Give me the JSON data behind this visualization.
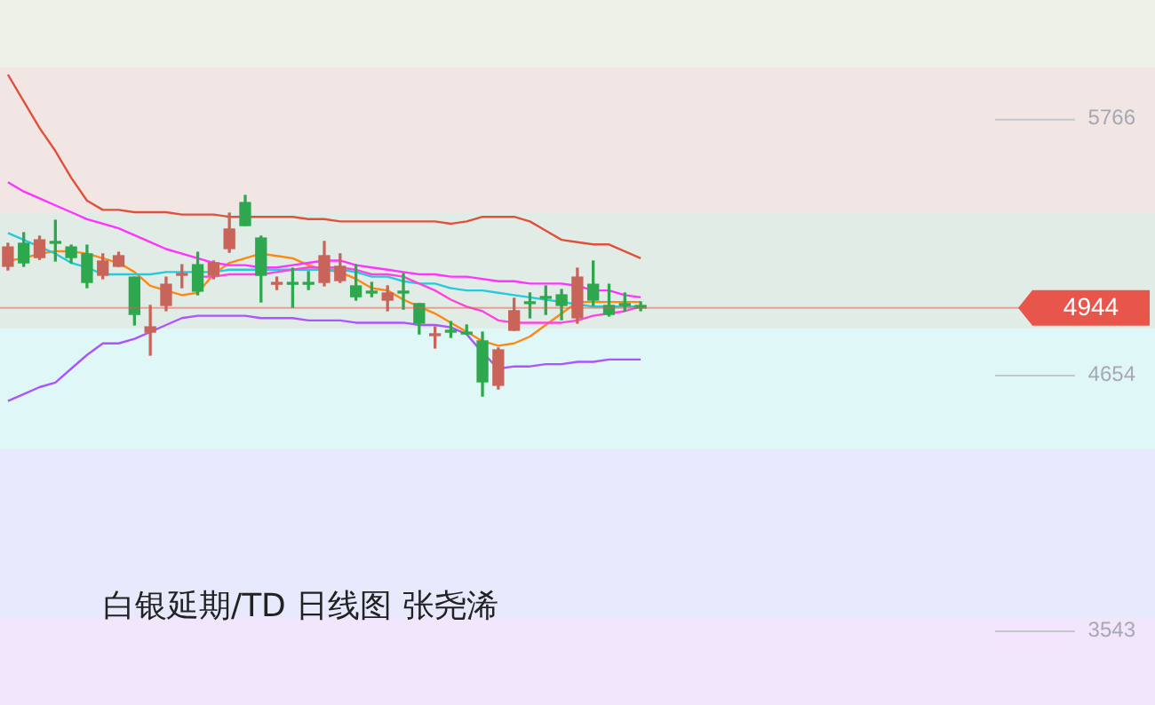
{
  "chart_data": {
    "type": "candlestick",
    "title": "白银延期/TD 日线图 张尧浠",
    "categories": [
      null,
      null,
      null,
      null,
      null,
      null,
      null,
      null,
      null,
      null,
      null,
      null,
      null,
      null,
      null,
      null,
      null,
      null,
      null,
      null,
      null,
      null,
      null,
      null,
      null,
      null,
      null,
      null,
      null,
      null,
      null,
      null,
      null,
      null,
      null,
      null,
      null,
      null,
      null,
      null,
      null
    ],
    "ohlc": [
      [
        5125,
        5225,
        5109,
        5209
      ],
      [
        5225,
        5271,
        5125,
        5140
      ],
      [
        5163,
        5256,
        5155,
        5240
      ],
      [
        5233,
        5325,
        5148,
        5225
      ],
      [
        5209,
        5217,
        5140,
        5163
      ],
      [
        5179,
        5217,
        5032,
        5055
      ],
      [
        5086,
        5179,
        5071,
        5148
      ],
      [
        5125,
        5186,
        5125,
        5171
      ],
      [
        5078,
        5078,
        4870,
        4916
      ],
      [
        4839,
        4955,
        4739,
        4862
      ],
      [
        4955,
        5078,
        4932,
        5047
      ],
      [
        5086,
        5132,
        5032,
        5094
      ],
      [
        5132,
        5186,
        5001,
        5017
      ],
      [
        5086,
        5148,
        5071,
        5140
      ],
      [
        5202,
        5356,
        5186,
        5287
      ],
      [
        5402,
        5433,
        5302,
        5302
      ],
      [
        5248,
        5256,
        4970,
        5086
      ],
      [
        5047,
        5078,
        5024,
        5055
      ],
      [
        5055,
        5117,
        4947,
        5047
      ],
      [
        5055,
        5102,
        5024,
        5047
      ],
      [
        5055,
        5233,
        5040,
        5171
      ],
      [
        5063,
        5179,
        5055,
        5125
      ],
      [
        5040,
        5132,
        4978,
        4993
      ],
      [
        5017,
        5055,
        4993,
        5009
      ],
      [
        4978,
        5040,
        4932,
        5009
      ],
      [
        5017,
        5094,
        4939,
        5009
      ],
      [
        4963,
        4963,
        4831,
        4878
      ],
      [
        4824,
        4862,
        4770,
        4831
      ],
      [
        4847,
        4885,
        4816,
        4839
      ],
      [
        4839,
        4870,
        4831,
        4831
      ],
      [
        4801,
        4839,
        4561,
        4623
      ],
      [
        4608,
        4770,
        4592,
        4762
      ],
      [
        4847,
        4986,
        4847,
        4932
      ],
      [
        4970,
        5009,
        4901,
        4963
      ],
      [
        4993,
        5040,
        4916,
        4986
      ],
      [
        5001,
        5024,
        4893,
        4955
      ],
      [
        4901,
        5117,
        4878,
        5078
      ],
      [
        5047,
        5148,
        4955,
        4978
      ],
      [
        4955,
        5047,
        4909,
        4916
      ],
      [
        4963,
        5009,
        4932,
        4955
      ],
      [
        4955,
        4970,
        4932,
        4944
      ]
    ],
    "colors": [
      "#c8645a",
      "#2ea84f",
      "#c8645a",
      "#2ea84f",
      "#2ea84f",
      "#2ea84f",
      "#c8645a",
      "#c8645a",
      "#2ea84f",
      "#c8645a",
      "#c8645a",
      "#c8645a",
      "#2ea84f",
      "#c8645a",
      "#c8645a",
      "#2ea84f",
      "#2ea84f",
      "#c8645a",
      "#2ea84f",
      "#2ea84f",
      "#c8645a",
      "#c8645a",
      "#2ea84f",
      "#2ea84f",
      "#c8645a",
      "#2ea84f",
      "#2ea84f",
      "#c8645a",
      "#2ea84f",
      "#2ea84f",
      "#2ea84f",
      "#c8645a",
      "#c8645a",
      "#2ea84f",
      "#2ea84f",
      "#2ea84f",
      "#c8645a",
      "#2ea84f",
      "#2ea84f",
      "#2ea84f",
      "#2ea84f"
    ],
    "series": [
      {
        "type": "line",
        "color": "#e0503a",
        "values": [
          5958,
          5842,
          5726,
          5626,
          5510,
          5410,
          5370,
          5370,
          5360,
          5360,
          5360,
          5350,
          5350,
          5350,
          5340,
          5340,
          5340,
          5340,
          5340,
          5330,
          5330,
          5320,
          5320,
          5320,
          5320,
          5320,
          5320,
          5320,
          5310,
          5320,
          5340,
          5340,
          5340,
          5320,
          5280,
          5240,
          5230,
          5220,
          5220,
          5190,
          5160
        ]
      },
      {
        "type": "line",
        "color": "#ff33ff",
        "values": [
          5490,
          5450,
          5420,
          5390,
          5360,
          5330,
          5310,
          5290,
          5260,
          5230,
          5200,
          5180,
          5160,
          5140,
          5130,
          5130,
          5120,
          5120,
          5130,
          5140,
          5150,
          5150,
          5130,
          5120,
          5110,
          5100,
          5090,
          5090,
          5080,
          5080,
          5070,
          5060,
          5060,
          5050,
          5050,
          5050,
          5040,
          5020,
          5020,
          5000,
          4990
        ]
      },
      {
        "type": "line",
        "color": "#ff44dd",
        "values": [
          null,
          null,
          null,
          null,
          null,
          null,
          null,
          null,
          null,
          null,
          null,
          null,
          5080,
          5080,
          5090,
          5090,
          5090,
          5100,
          5110,
          5120,
          5120,
          5120,
          5110,
          5090,
          5090,
          5080,
          5050,
          5020,
          4980,
          4950,
          4930,
          4890,
          4880,
          4880,
          4880,
          4880,
          4890,
          4910,
          4920,
          4930,
          4950
        ]
      },
      {
        "type": "line",
        "color": "#22ccdd",
        "values": [
          5270,
          5240,
          5210,
          5180,
          5140,
          5120,
          5090,
          5090,
          5090,
          5090,
          5100,
          5100,
          5100,
          5100,
          5110,
          5110,
          5110,
          5110,
          5110,
          5110,
          5110,
          5110,
          5100,
          5080,
          5080,
          5060,
          5050,
          5050,
          5030,
          5020,
          5020,
          5010,
          5000,
          4990,
          4980,
          4970,
          4960,
          4950,
          4950,
          4950,
          4950
        ]
      },
      {
        "type": "line",
        "color": "#ff8811",
        "values": [
          5150,
          5160,
          5180,
          5190,
          5190,
          5180,
          5160,
          5140,
          5100,
          5040,
          5020,
          5000,
          5010,
          5090,
          5140,
          5160,
          5180,
          5170,
          5160,
          5130,
          5110,
          5100,
          5070,
          5030,
          5020,
          4980,
          4950,
          4920,
          4880,
          4840,
          4800,
          4780,
          4790,
          4820,
          4870,
          4920,
          4970,
          4970,
          4970,
          4970,
          4970
        ]
      },
      {
        "type": "line",
        "color": "#aa55ff",
        "values": [
          4540,
          4570,
          4600,
          4620,
          4680,
          4740,
          4790,
          4790,
          4810,
          4840,
          4870,
          4900,
          4910,
          4910,
          4910,
          4910,
          4900,
          4900,
          4900,
          4890,
          4890,
          4890,
          4880,
          4880,
          4880,
          4880,
          4870,
          4870,
          4860,
          4830,
          4750,
          4680,
          4690,
          4690,
          4700,
          4700,
          4710,
          4710,
          4720,
          4720,
          4720
        ]
      }
    ],
    "ylim": [
      3219,
      6282
    ],
    "yticks": [
      5766,
      4654,
      3543
    ],
    "ref_lines": [
      {
        "axis": "y",
        "value": 4944,
        "label": "4944",
        "color": "#e8554a"
      }
    ],
    "marker": "none",
    "tick_labels": "y"
  }
}
